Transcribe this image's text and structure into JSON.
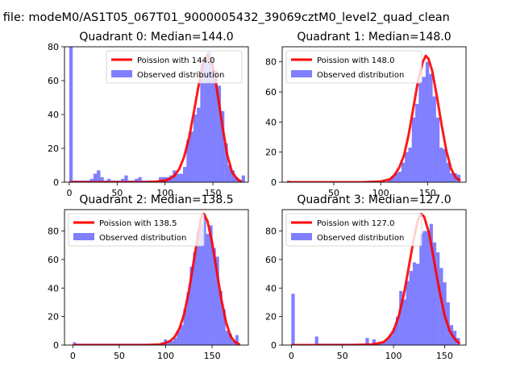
{
  "figure": {
    "suptitle": "n file: modeM0/AS1T05_067T01_9000005432_39069cztM0_level2_quad_clean"
  },
  "colors": {
    "fit": "#ff0000",
    "hist": "#0000ff",
    "hist_alpha": 0.5
  },
  "chart_data": [
    {
      "type": "bar",
      "title": "Quadrant 0: Median=144.0",
      "xlim": [
        -5,
        187
      ],
      "ylim": [
        0,
        80
      ],
      "xticks": [
        0,
        50,
        100,
        150
      ],
      "yticks": [
        0,
        20,
        40,
        60,
        80
      ],
      "bin_width": 3.6,
      "hist_x": [
        0,
        3.6,
        7.2,
        10.8,
        14.4,
        18,
        21.6,
        25.2,
        28.8,
        32.4,
        36,
        39.6,
        43.2,
        46.8,
        50.4,
        54,
        57.6,
        61.2,
        64.8,
        68.4,
        72,
        75.6,
        79.2,
        82.8,
        86.4,
        90,
        93.6,
        97.2,
        100.8,
        104.4,
        108,
        111.6,
        115.2,
        118.8,
        122.4,
        126,
        129.6,
        133.2,
        136.8,
        140.4,
        144,
        147.6,
        151.2,
        154.8,
        158.4,
        162,
        165.6,
        169.2,
        172.8,
        176.4,
        180
      ],
      "hist_y": [
        80,
        1,
        1,
        1,
        1,
        1,
        2,
        5,
        7,
        3,
        1,
        2,
        1,
        1,
        1,
        2,
        4,
        1,
        1,
        2,
        3,
        1,
        1,
        1,
        1,
        1,
        3,
        3,
        3,
        4,
        7,
        5,
        5,
        9,
        25,
        30,
        40,
        44,
        70,
        73,
        77,
        74,
        66,
        57,
        42,
        23,
        10,
        7,
        3,
        1,
        4
      ],
      "fit_x": [
        0,
        20,
        40,
        60,
        80,
        90,
        100,
        105,
        110,
        115,
        120,
        125,
        130,
        135,
        140,
        144,
        148,
        152,
        156,
        160,
        165,
        170,
        175,
        180
      ],
      "fit_y": [
        0,
        0,
        0,
        0,
        0,
        0.3,
        1,
        2,
        4,
        8,
        15,
        26,
        41,
        57,
        70,
        75,
        72,
        63,
        48,
        33,
        16,
        6,
        2,
        0.3
      ],
      "legend": [
        "Poission with 144.0",
        "Observed distribution"
      ]
    },
    {
      "type": "bar",
      "title": "Quadrant 1: Median=148.0",
      "xlim": [
        -5,
        191
      ],
      "ylim": [
        0,
        90
      ],
      "xticks": [
        50,
        100,
        150
      ],
      "yticks": [
        0,
        20,
        40,
        60,
        80
      ],
      "bin_width": 3.7,
      "hist_x": [
        0,
        3.7,
        7.4,
        11.1,
        14.8,
        18.5,
        22.2,
        25.9,
        29.6,
        33.3,
        37,
        40.7,
        44.4,
        48.1,
        51.8,
        55.5,
        59.2,
        62.9,
        66.6,
        70.3,
        74,
        77.7,
        81.4,
        85.1,
        88.8,
        92.5,
        96.2,
        99.9,
        103.6,
        107.3,
        111,
        114.7,
        118.4,
        122.1,
        125.8,
        129.5,
        133.2,
        136.9,
        140.6,
        144.3,
        148,
        151.7,
        155.4,
        159.1,
        162.8,
        166.5,
        170.2,
        173.9,
        177.6,
        181.3
      ],
      "hist_y": [
        1,
        0,
        0,
        0,
        0,
        0,
        0,
        0,
        0,
        0,
        0,
        0,
        0,
        0,
        0,
        0,
        0,
        0,
        0,
        0,
        0,
        0,
        0,
        0,
        0,
        0,
        0,
        0,
        0,
        2,
        4,
        6,
        7,
        13,
        20,
        23,
        43,
        52,
        67,
        70,
        80,
        72,
        57,
        43,
        23,
        22,
        13,
        6,
        6,
        5
      ],
      "fit_x": [
        0,
        20,
        40,
        60,
        80,
        100,
        110,
        115,
        120,
        125,
        130,
        135,
        140,
        145,
        148,
        151,
        155,
        160,
        165,
        170,
        175,
        180,
        185
      ],
      "fit_y": [
        0,
        0,
        0,
        0,
        0,
        0.5,
        2,
        5,
        10,
        18,
        32,
        50,
        68,
        80,
        84,
        82,
        74,
        57,
        38,
        21,
        9,
        3,
        1
      ],
      "legend": [
        "Poission with 148.0",
        "Observed distribution"
      ]
    },
    {
      "type": "bar",
      "title": "Quadrant 2: Median=138.5",
      "xlim": [
        -9,
        189
      ],
      "ylim": [
        0,
        95
      ],
      "xticks": [
        0,
        50,
        100,
        150
      ],
      "yticks": [
        0,
        20,
        40,
        60,
        80
      ],
      "bin_width": 3.5,
      "hist_x": [
        0,
        3.5,
        7,
        10.5,
        14,
        17.5,
        21,
        24.5,
        28,
        31.5,
        35,
        38.5,
        42,
        45.5,
        49,
        52.5,
        56,
        59.5,
        63,
        66.5,
        70,
        73.5,
        77,
        80.5,
        84,
        87.5,
        91,
        94.5,
        98,
        101.5,
        105,
        108.5,
        112,
        115.5,
        119,
        122.5,
        126,
        129.5,
        133,
        136.5,
        140,
        143.5,
        147,
        150.5,
        154,
        157.5,
        161,
        164.5,
        168,
        171.5,
        175
      ],
      "hist_y": [
        2,
        1,
        1,
        1,
        1,
        1,
        1,
        1,
        1,
        1,
        1,
        1,
        1,
        1,
        1,
        1,
        1,
        1,
        1,
        1,
        1,
        1,
        1,
        1,
        1,
        1,
        1,
        2,
        4,
        2,
        3,
        5,
        10,
        14,
        25,
        37,
        55,
        65,
        80,
        85,
        92,
        78,
        84,
        68,
        62,
        38,
        25,
        10,
        8,
        3,
        7
      ],
      "fit_x": [
        0,
        20,
        40,
        60,
        80,
        95,
        100,
        105,
        110,
        115,
        120,
        125,
        130,
        135,
        138,
        141,
        145,
        150,
        155,
        160,
        165,
        170,
        175,
        180
      ],
      "fit_y": [
        0,
        0,
        0,
        0,
        0,
        0.5,
        1.5,
        3,
        6,
        12,
        22,
        38,
        58,
        78,
        89,
        92,
        87,
        72,
        52,
        32,
        16,
        6,
        2,
        0.3
      ],
      "legend": [
        "Poission with 138.5",
        "Observed distribution"
      ]
    },
    {
      "type": "bar",
      "title": "Quadrant 3: Median=127.0",
      "xlim": [
        -9,
        171
      ],
      "ylim": [
        0,
        95
      ],
      "xticks": [
        0,
        50,
        100,
        150
      ],
      "yticks": [
        0,
        20,
        40,
        60,
        80
      ],
      "bin_width": 3.3,
      "hist_x": [
        0,
        3.3,
        6.6,
        9.9,
        13.2,
        16.5,
        19.8,
        23.1,
        26.4,
        29.7,
        33,
        36.3,
        39.6,
        42.9,
        46.2,
        49.5,
        52.8,
        56.1,
        59.4,
        62.7,
        66,
        69.3,
        72.6,
        75.9,
        79.2,
        82.5,
        85.8,
        89.1,
        92.4,
        95.7,
        99,
        102.3,
        105.6,
        108.9,
        112.2,
        115.5,
        118.8,
        122.1,
        125.4,
        128.7,
        132,
        135.3,
        138.6,
        141.9,
        145.2,
        148.5,
        151.8,
        155.1,
        158.4,
        161.7
      ],
      "hist_y": [
        36,
        0,
        0,
        0,
        0,
        0,
        0,
        6,
        1,
        1,
        1,
        1,
        1,
        1,
        1,
        1,
        1,
        1,
        1,
        1,
        1,
        1,
        5,
        1,
        4,
        1,
        1,
        2,
        4,
        7,
        12,
        20,
        38,
        32,
        45,
        52,
        58,
        57,
        78,
        80,
        80,
        85,
        72,
        65,
        54,
        44,
        30,
        14,
        10,
        5
      ],
      "fit_x": [
        0,
        20,
        40,
        60,
        80,
        90,
        95,
        100,
        105,
        110,
        115,
        120,
        124,
        127,
        130,
        135,
        140,
        145,
        150,
        155,
        160,
        165
      ],
      "fit_y": [
        0,
        0,
        0,
        0,
        0.5,
        2,
        5,
        10,
        20,
        35,
        55,
        75,
        88,
        92,
        90,
        78,
        58,
        38,
        21,
        10,
        4,
        1
      ],
      "legend": [
        "Poission with 127.0",
        "Observed distribution"
      ]
    }
  ]
}
